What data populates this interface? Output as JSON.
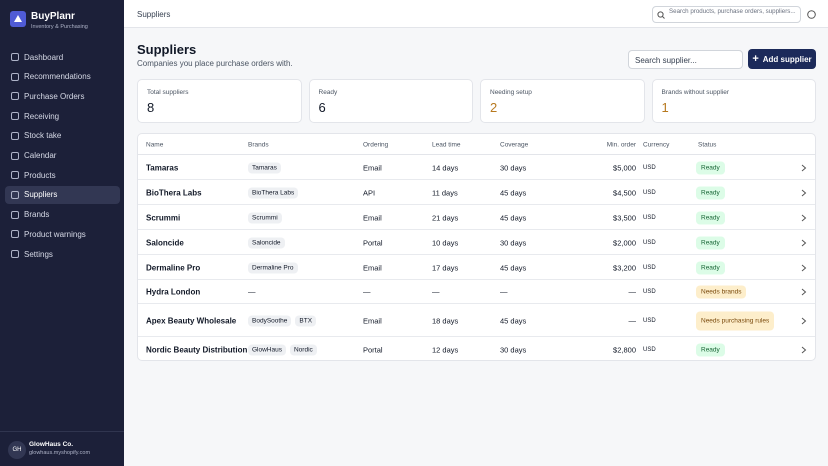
{
  "app": {
    "name": "BuyPlanr",
    "tagline": "Inventory & Purchasing"
  },
  "nav": [
    "Dashboard",
    "Recommendations",
    "Purchase Orders",
    "Receiving",
    "Stock take",
    "Calendar",
    "Products",
    "Suppliers",
    "Brands",
    "Product warnings",
    "Settings"
  ],
  "active_nav": "Suppliers",
  "account": {
    "initials": "GH",
    "name": "GlowHaus Co.",
    "domain": "glowhaus.myshopify.com"
  },
  "topbar": {
    "breadcrumb": "Suppliers",
    "search_placeholder": "Search products, purchase orders, suppliers..."
  },
  "header": {
    "title": "Suppliers",
    "subtitle": "Companies you place purchase orders with.",
    "search_placeholder": "Search supplier...",
    "add_button": "Add supplier"
  },
  "stats": [
    {
      "label": "Total suppliers",
      "value": "8"
    },
    {
      "label": "Ready",
      "value": "6"
    },
    {
      "label": "Needing setup",
      "value": "2",
      "warn": true
    },
    {
      "label": "Brands without supplier",
      "value": "1",
      "warn": true
    }
  ],
  "table": {
    "columns": [
      "Name",
      "Brands",
      "Ordering",
      "Lead time",
      "Coverage",
      "Min. order",
      "Currency",
      "Status"
    ],
    "rows": [
      {
        "name": "Tamaras",
        "brands": [
          "Tamaras"
        ],
        "ordering": "Email",
        "lead_time": "14 days",
        "coverage": "30 days",
        "min_order": "$5,000",
        "currency": "USD",
        "status": "Ready"
      },
      {
        "name": "BioThera Labs",
        "brands": [
          "BioThera Labs"
        ],
        "ordering": "API",
        "lead_time": "11 days",
        "coverage": "45 days",
        "min_order": "$4,500",
        "currency": "USD",
        "status": "Ready"
      },
      {
        "name": "Scrummi",
        "brands": [
          "Scrummi"
        ],
        "ordering": "Email",
        "lead_time": "21 days",
        "coverage": "45 days",
        "min_order": "$3,500",
        "currency": "USD",
        "status": "Ready"
      },
      {
        "name": "Saloncide",
        "brands": [
          "Saloncide"
        ],
        "ordering": "Portal",
        "lead_time": "10 days",
        "coverage": "30 days",
        "min_order": "$2,000",
        "currency": "USD",
        "status": "Ready"
      },
      {
        "name": "Dermaline Pro",
        "brands": [
          "Dermaline Pro"
        ],
        "ordering": "Email",
        "lead_time": "17 days",
        "coverage": "45 days",
        "min_order": "$3,200",
        "currency": "USD",
        "status": "Ready"
      },
      {
        "name": "Hydra London",
        "brands": [
          "—"
        ],
        "ordering": "—",
        "lead_time": "—",
        "coverage": "—",
        "min_order": "—",
        "currency": "USD",
        "status": "Needs brands"
      },
      {
        "name": "Apex Beauty Wholesale",
        "brands": [
          "BodySoothe",
          "BTX"
        ],
        "ordering": "Email",
        "lead_time": "18 days",
        "coverage": "45 days",
        "min_order": "—",
        "currency": "USD",
        "status": "Needs purchasing rules"
      },
      {
        "name": "Nordic Beauty Distribution",
        "brands": [
          "GlowHaus",
          "Nordic"
        ],
        "ordering": "Portal",
        "lead_time": "12 days",
        "coverage": "30 days",
        "min_order": "$2,800",
        "currency": "USD",
        "status": "Ready"
      }
    ]
  }
}
